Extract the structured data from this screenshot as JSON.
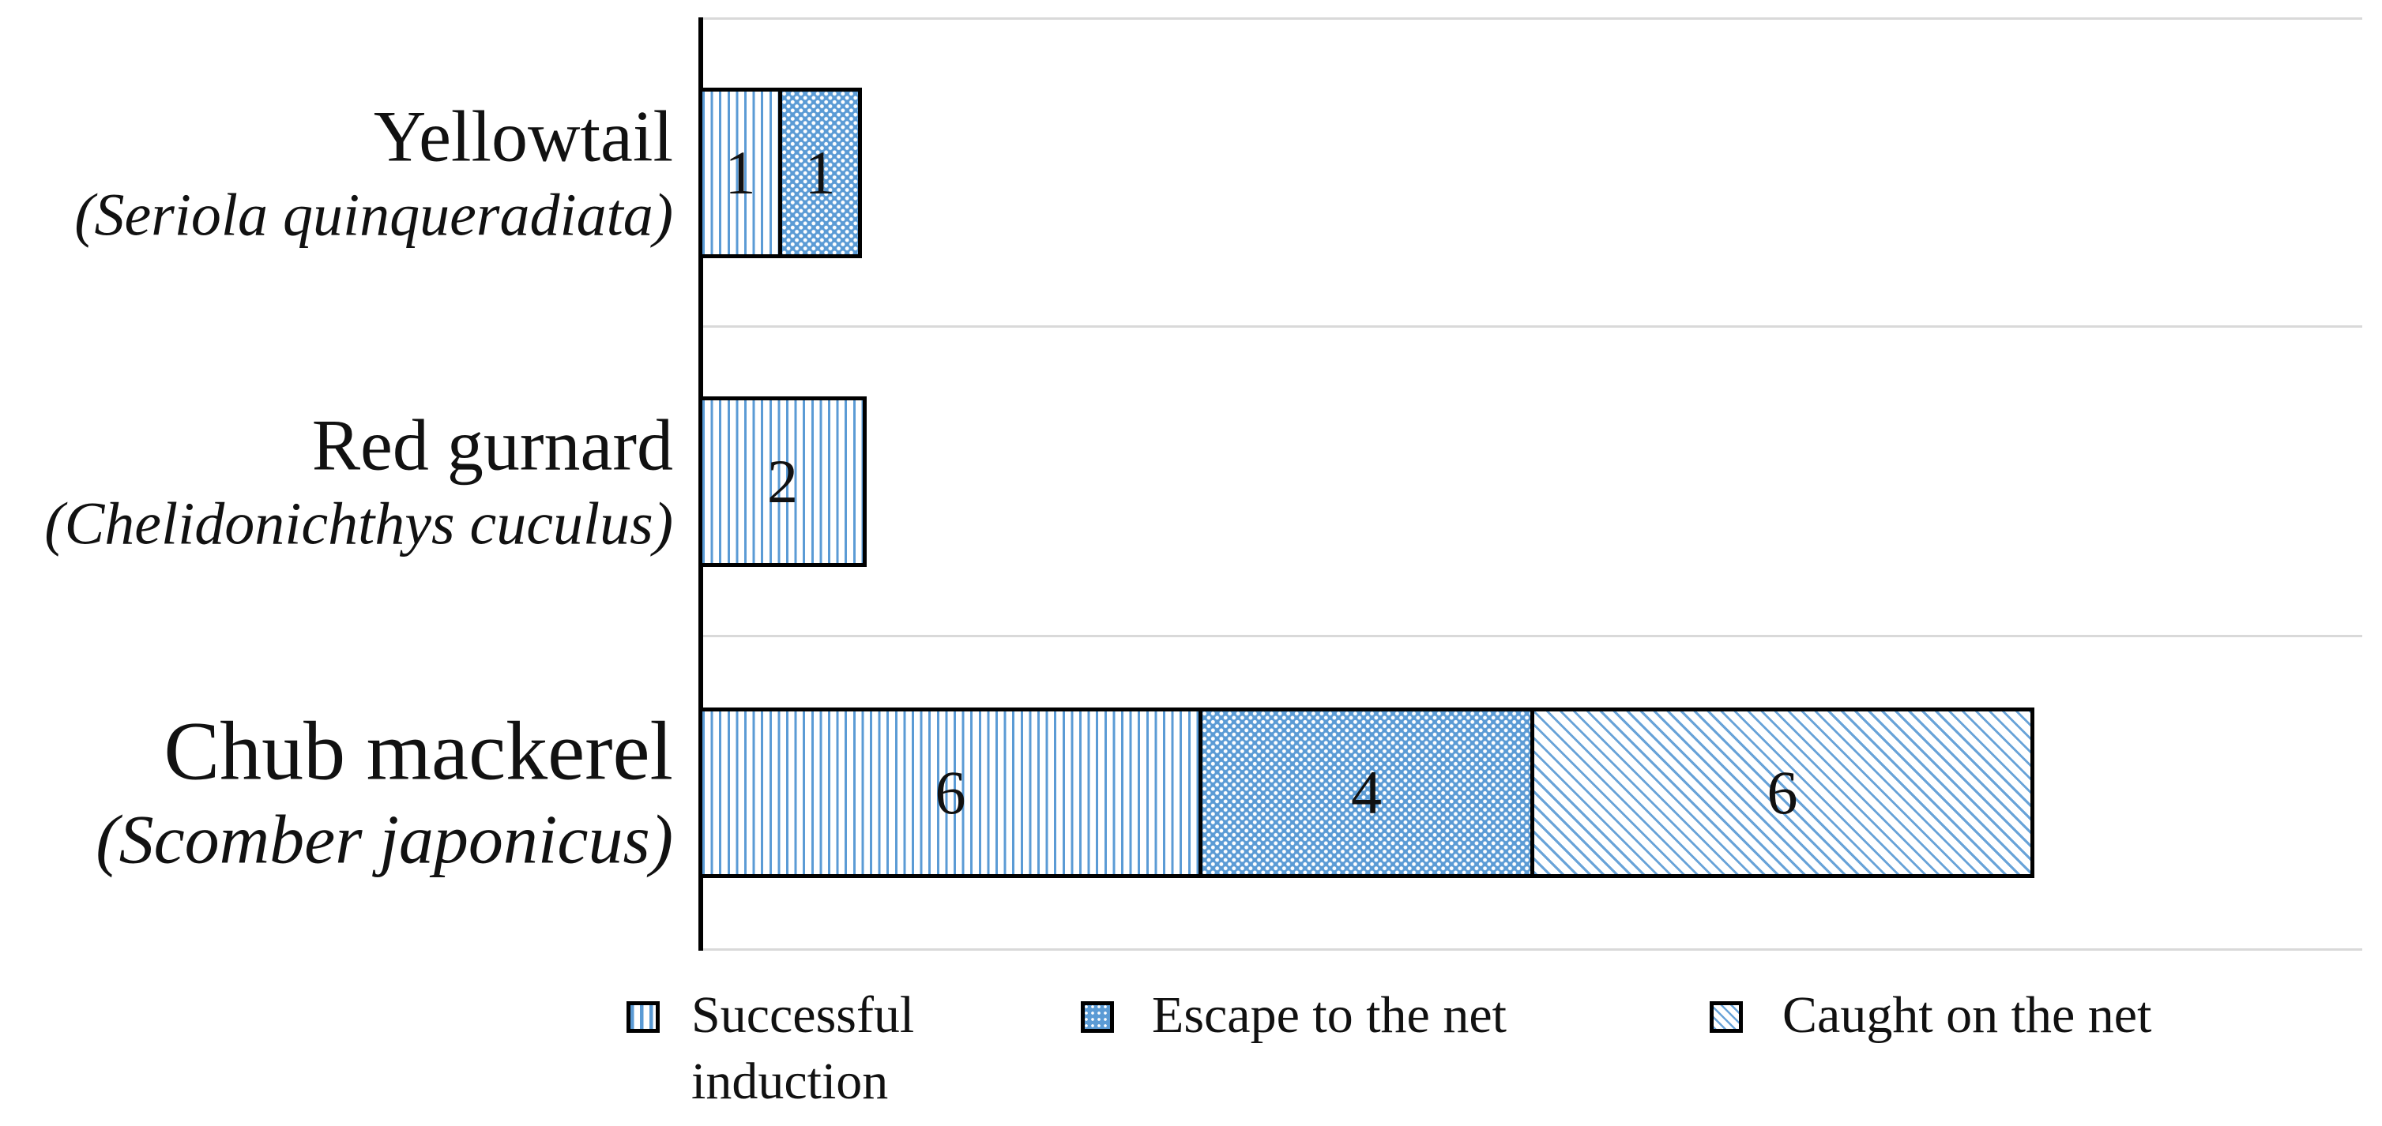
{
  "figure": {
    "background": "#ffffff"
  },
  "colors": {
    "bar_blue": "#5b9bd5",
    "segment_border": "#000000",
    "gridline_gray": "#d9d9d9",
    "text_black": "#111111"
  },
  "chart_data": {
    "type": "bar",
    "orientation": "horizontal",
    "stacked": true,
    "title": "",
    "xlabel": "",
    "ylabel": "",
    "x_axis_ticks_visible": false,
    "grid": "horizontal category-boundary gridlines",
    "legend_position": "bottom",
    "categories": [
      {
        "label": "Yellowtail",
        "scientific_name": "(Seriola quinqueradiata)"
      },
      {
        "label": "Red gurnard",
        "scientific_name": "(Chelidonichthys cuculus)"
      },
      {
        "label": "Chub mackerel",
        "scientific_name": "(Scomber japonicus)"
      }
    ],
    "series": [
      {
        "name": "Successful induction",
        "pattern": "vertical-stripes",
        "values": [
          1,
          2,
          6
        ]
      },
      {
        "name": "Escape to the net",
        "pattern": "dots",
        "values": [
          1,
          0,
          4
        ]
      },
      {
        "name": "Caught on the net",
        "pattern": "diagonal-hatch",
        "values": [
          0,
          0,
          6
        ]
      }
    ]
  }
}
